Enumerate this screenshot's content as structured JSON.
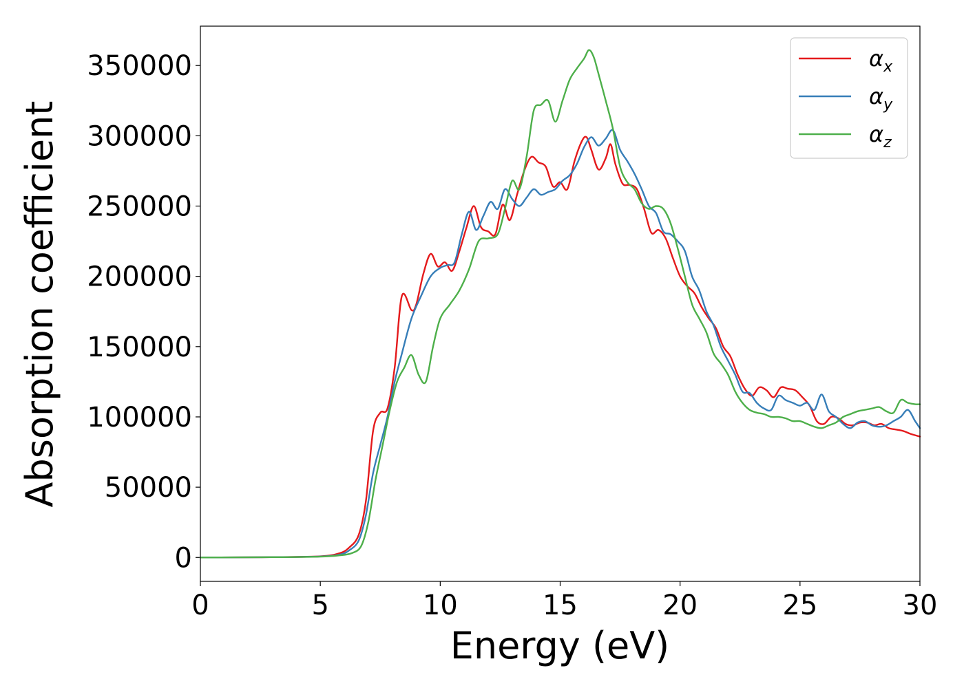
{
  "chart_data": {
    "type": "line",
    "title": "",
    "xlabel": "Energy (eV)",
    "ylabel": "Absorption coefficient",
    "xlim": [
      0,
      30
    ],
    "ylim": [
      -17000,
      378000
    ],
    "xticks": [
      0,
      5,
      10,
      15,
      20,
      25,
      30
    ],
    "xtick_labels": [
      "0",
      "5",
      "10",
      "15",
      "20",
      "25",
      "30"
    ],
    "yticks": [
      0,
      50000,
      100000,
      150000,
      200000,
      250000,
      300000,
      350000
    ],
    "ytick_labels": [
      "0",
      "50000",
      "100000",
      "150000",
      "200000",
      "250000",
      "300000",
      "350000"
    ],
    "grid": false,
    "legend_position": "top-right",
    "series": [
      {
        "name": "α",
        "subscript": "x",
        "color": "#e41a1c",
        "x": [
          0,
          3,
          5,
          5.8,
          6.2,
          6.6,
          6.9,
          7.2,
          7.5,
          7.8,
          8.1,
          8.4,
          8.8,
          9.0,
          9.3,
          9.6,
          9.9,
          10.2,
          10.5,
          10.8,
          11.1,
          11.4,
          11.7,
          12.0,
          12.3,
          12.6,
          12.9,
          13.2,
          13.5,
          13.8,
          14.1,
          14.4,
          14.7,
          15.0,
          15.3,
          15.6,
          15.9,
          16.1,
          16.3,
          16.6,
          16.9,
          17.1,
          17.3,
          17.6,
          17.9,
          18.2,
          18.5,
          18.8,
          19.1,
          19.4,
          19.7,
          20.0,
          20.3,
          20.6,
          20.9,
          21.2,
          21.5,
          21.8,
          22.1,
          22.4,
          22.7,
          23.0,
          23.3,
          23.6,
          23.9,
          24.2,
          24.5,
          24.8,
          25.1,
          25.4,
          25.7,
          26.0,
          26.3,
          26.6,
          26.9,
          27.2,
          27.5,
          27.8,
          28.1,
          28.4,
          28.7,
          29.0,
          29.3,
          29.6,
          30.0
        ],
        "values": [
          0,
          200,
          800,
          3000,
          7000,
          16000,
          40000,
          90000,
          103000,
          106000,
          135000,
          186000,
          176000,
          180000,
          202000,
          216000,
          207000,
          210000,
          204000,
          218000,
          235000,
          250000,
          235000,
          232000,
          230000,
          251000,
          240000,
          258000,
          275000,
          285000,
          281000,
          278000,
          264000,
          267000,
          262000,
          282000,
          296000,
          299000,
          290000,
          276000,
          284000,
          294000,
          280000,
          266000,
          265000,
          262000,
          248000,
          231000,
          233000,
          227000,
          213000,
          200000,
          193000,
          188000,
          178000,
          170000,
          163000,
          150000,
          143000,
          130000,
          120000,
          115000,
          121000,
          119000,
          114000,
          121000,
          120000,
          119000,
          114000,
          108000,
          97000,
          95000,
          100000,
          99000,
          95000,
          94000,
          96000,
          96000,
          94000,
          95000,
          92000,
          91000,
          90000,
          88000,
          86000
        ]
      },
      {
        "name": "α",
        "subscript": "y",
        "color": "#377eb8",
        "x": [
          0,
          3,
          5,
          5.8,
          6.2,
          6.6,
          6.9,
          7.2,
          7.5,
          7.8,
          8.1,
          8.4,
          8.8,
          9.2,
          9.6,
          10.0,
          10.3,
          10.6,
          10.9,
          11.2,
          11.5,
          11.8,
          12.1,
          12.4,
          12.7,
          13.0,
          13.3,
          13.6,
          13.9,
          14.2,
          14.5,
          14.8,
          15.1,
          15.4,
          15.7,
          16.0,
          16.3,
          16.6,
          16.9,
          17.2,
          17.5,
          17.8,
          18.1,
          18.4,
          18.7,
          19.0,
          19.3,
          19.6,
          19.9,
          20.2,
          20.5,
          20.8,
          21.1,
          21.4,
          21.7,
          22.0,
          22.3,
          22.6,
          22.9,
          23.2,
          23.5,
          23.8,
          24.1,
          24.4,
          24.7,
          25.0,
          25.3,
          25.6,
          25.9,
          26.2,
          26.5,
          26.8,
          27.1,
          27.4,
          27.7,
          28.0,
          28.3,
          28.6,
          28.9,
          29.2,
          29.5,
          29.8,
          30.0
        ],
        "values": [
          0,
          200,
          700,
          2000,
          5000,
          12000,
          30000,
          60000,
          80000,
          100000,
          125000,
          145000,
          170000,
          186000,
          200000,
          206000,
          208000,
          210000,
          230000,
          246000,
          233000,
          243000,
          253000,
          248000,
          262000,
          255000,
          250000,
          256000,
          262000,
          258000,
          260000,
          262000,
          268000,
          272000,
          280000,
          292000,
          299000,
          293000,
          298000,
          304000,
          290000,
          282000,
          273000,
          262000,
          250000,
          245000,
          232000,
          230000,
          225000,
          218000,
          200000,
          190000,
          175000,
          165000,
          150000,
          140000,
          130000,
          118000,
          117000,
          110000,
          106000,
          105000,
          115000,
          112000,
          110000,
          108000,
          110000,
          105000,
          116000,
          104000,
          100000,
          95000,
          92000,
          96000,
          97000,
          94000,
          93000,
          94000,
          97000,
          100000,
          105000,
          97000,
          92000
        ]
      },
      {
        "name": "α",
        "subscript": "z",
        "color": "#4daf4a",
        "x": [
          0,
          3,
          5,
          5.8,
          6.3,
          6.7,
          7.0,
          7.3,
          7.6,
          7.9,
          8.2,
          8.5,
          8.8,
          9.1,
          9.4,
          9.7,
          10.0,
          10.4,
          10.8,
          11.2,
          11.6,
          12.0,
          12.4,
          12.7,
          13.0,
          13.3,
          13.6,
          13.9,
          14.2,
          14.5,
          14.8,
          15.1,
          15.4,
          15.7,
          16.0,
          16.2,
          16.4,
          16.6,
          16.9,
          17.2,
          17.5,
          17.8,
          18.1,
          18.4,
          18.7,
          19.0,
          19.3,
          19.6,
          19.9,
          20.2,
          20.5,
          20.8,
          21.1,
          21.4,
          21.7,
          22.0,
          22.3,
          22.6,
          22.9,
          23.2,
          23.5,
          23.8,
          24.1,
          24.4,
          24.7,
          25.0,
          25.3,
          25.6,
          25.9,
          26.2,
          26.5,
          26.8,
          27.1,
          27.4,
          27.7,
          28.0,
          28.3,
          28.6,
          28.9,
          29.2,
          29.5,
          29.8,
          30.0
        ],
        "values": [
          0,
          200,
          600,
          1500,
          3000,
          8000,
          25000,
          55000,
          80000,
          105000,
          125000,
          135000,
          144000,
          130000,
          125000,
          150000,
          170000,
          180000,
          190000,
          205000,
          225000,
          227000,
          230000,
          248000,
          268000,
          262000,
          285000,
          318000,
          322000,
          325000,
          310000,
          325000,
          340000,
          348000,
          355000,
          361000,
          356000,
          344000,
          325000,
          305000,
          278000,
          267000,
          262000,
          252000,
          248000,
          250000,
          248000,
          238000,
          220000,
          200000,
          180000,
          170000,
          160000,
          145000,
          138000,
          130000,
          118000,
          110000,
          105000,
          103000,
          102000,
          100000,
          100000,
          99000,
          97000,
          97000,
          95000,
          93000,
          92000,
          94000,
          96000,
          100000,
          102000,
          104000,
          105000,
          106000,
          107000,
          104000,
          103000,
          112000,
          110000,
          109000,
          109000
        ]
      }
    ]
  }
}
